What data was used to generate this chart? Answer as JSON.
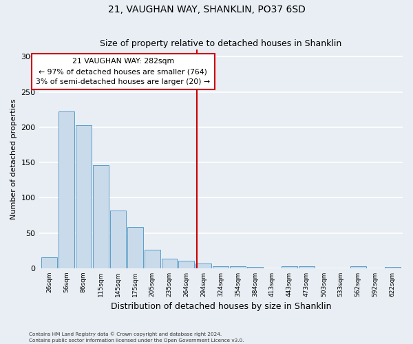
{
  "title": "21, VAUGHAN WAY, SHANKLIN, PO37 6SD",
  "subtitle": "Size of property relative to detached houses in Shanklin",
  "xlabel": "Distribution of detached houses by size in Shanklin",
  "ylabel": "Number of detached properties",
  "bin_labels": [
    "26sqm",
    "56sqm",
    "86sqm",
    "115sqm",
    "145sqm",
    "175sqm",
    "205sqm",
    "235sqm",
    "264sqm",
    "294sqm",
    "324sqm",
    "354sqm",
    "384sqm",
    "413sqm",
    "443sqm",
    "473sqm",
    "503sqm",
    "533sqm",
    "562sqm",
    "592sqm",
    "622sqm"
  ],
  "bar_heights": [
    16,
    222,
    203,
    146,
    82,
    58,
    26,
    14,
    11,
    7,
    3,
    3,
    2,
    0,
    3,
    3,
    0,
    0,
    3,
    0,
    2
  ],
  "bar_color": "#c9daea",
  "bar_edge_color": "#5a9ec8",
  "ylim": [
    0,
    310
  ],
  "yticks": [
    0,
    50,
    100,
    150,
    200,
    250,
    300
  ],
  "vline_color": "#cc0000",
  "annotation_title": "21 VAUGHAN WAY: 282sqm",
  "annotation_line1": "← 97% of detached houses are smaller (764)",
  "annotation_line2": "3% of semi-detached houses are larger (20) →",
  "annotation_box_color": "#ffffff",
  "annotation_box_edge": "#cc0000",
  "footer1": "Contains HM Land Registry data © Crown copyright and database right 2024.",
  "footer2": "Contains public sector information licensed under the Open Government Licence v3.0.",
  "bg_color": "#e8eef4",
  "plot_bg_color": "#e8eef4",
  "grid_color": "#ffffff"
}
